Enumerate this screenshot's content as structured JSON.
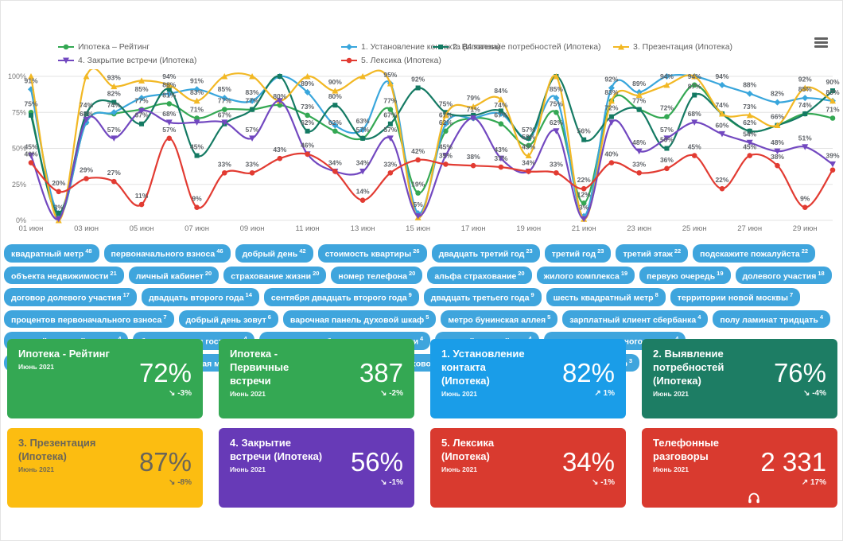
{
  "legend": {
    "items": [
      {
        "label": "Ипотека – Рейтинг",
        "color": "#34a853",
        "marker": "circle"
      },
      {
        "label": "1. Установление контакта (Ипотека)",
        "color": "#39a6dc",
        "marker": "diamond"
      },
      {
        "label": "2. Выявление потребностей (Ипотека)",
        "color": "#147a63",
        "marker": "square"
      },
      {
        "label": "3. Презентация (Ипотека)",
        "color": "#f2b824",
        "marker": "triangle"
      },
      {
        "label": "4. Закрытие встречи (Ипотека)",
        "color": "#7248c0",
        "marker": "triangle-down"
      },
      {
        "label": "5. Лексика (Ипотека)",
        "color": "#e23b32",
        "marker": "circle"
      }
    ]
  },
  "chart_data": {
    "type": "line",
    "x_labels": [
      "01 июн",
      "02 июн",
      "03 июн",
      "04 июн",
      "05 июн",
      "06 июн",
      "07 июн",
      "08 июн",
      "09 июн",
      "10 июн",
      "11 июн",
      "12 июн",
      "13 июн",
      "14 июн",
      "15 июн",
      "16 июн",
      "17 июн",
      "18 июн",
      "19 июн",
      "20 июн",
      "21 июн",
      "22 июн",
      "23 июн",
      "24 июн",
      "25 июн",
      "26 июн",
      "27 июн",
      "28 июн",
      "29 июн",
      "30 июн"
    ],
    "tick_every": 2,
    "ylim": [
      0,
      100
    ],
    "yticks": [
      "0%",
      "25%",
      "50%",
      "75%",
      "100%"
    ],
    "grid": true,
    "legend_position": "top",
    "series": [
      {
        "name": "Ипотека – Рейтинг",
        "color": "#34a853",
        "marker": "circle",
        "values": [
          75,
          3,
          68,
          74,
          77,
          81,
          71,
          77,
          77,
          80,
          73,
          62,
          57,
          77,
          19,
          62,
          71,
          67,
          52,
          75,
          12,
          83,
          77,
          72,
          94,
          74,
          62,
          66,
          74,
          71
        ]
      },
      {
        "name": "1. Установление контакта (Ипотека)",
        "color": "#39a6dc",
        "marker": "diamond",
        "values": [
          91,
          5,
          68,
          75,
          85,
          88,
          91,
          85,
          83,
          100,
          89,
          66,
          63,
          95,
          5,
          67,
          71,
          74,
          57,
          85,
          3,
          92,
          89,
          100,
          100,
          94,
          88,
          82,
          85,
          83
        ]
      },
      {
        "name": "2. Выявление потребностей (Ипотека)",
        "color": "#147a63",
        "marker": "square",
        "values": [
          73,
          5,
          74,
          82,
          67,
          91,
          45,
          67,
          77,
          100,
          62,
          80,
          57,
          67,
          92,
          75,
          73,
          76,
          57,
          100,
          56,
          72,
          77,
          50,
          87,
          74,
          62,
          66,
          74,
          90
        ]
      },
      {
        "name": "3. Презентация (Ипотека)",
        "color": "#f2b824",
        "marker": "triangle",
        "values": [
          100,
          0,
          100,
          93,
          97,
          94,
          83,
          100,
          100,
          83,
          100,
          90,
          100,
          95,
          2,
          73,
          79,
          84,
          45,
          100,
          1,
          83,
          87,
          94,
          100,
          74,
          73,
          66,
          92,
          83
        ]
      },
      {
        "name": "4. Закрытие встречи (Ипотека)",
        "color": "#7248c0",
        "marker": "triangle-down",
        "values": [
          45,
          1,
          70,
          57,
          76,
          68,
          68,
          68,
          57,
          83,
          46,
          34,
          34,
          57,
          3,
          45,
          71,
          43,
          34,
          62,
          1,
          68,
          48,
          57,
          68,
          60,
          54,
          48,
          51,
          39
        ]
      },
      {
        "name": "5. Лексика (Ипотека)",
        "color": "#e23b32",
        "marker": "circle",
        "values": [
          40,
          20,
          29,
          27,
          11,
          57,
          9,
          33,
          33,
          43,
          46,
          34,
          14,
          33,
          42,
          39,
          38,
          37,
          34,
          33,
          22,
          40,
          33,
          36,
          45,
          22,
          45,
          38,
          9,
          35
        ]
      }
    ]
  },
  "tags": [
    {
      "label": "квадратный метр",
      "count": 48
    },
    {
      "label": "первоначального взноса",
      "count": 46
    },
    {
      "label": "добрый день",
      "count": 42
    },
    {
      "label": "стоимость квартиры",
      "count": 26
    },
    {
      "label": "двадцать третий год",
      "count": 23
    },
    {
      "label": "третий год",
      "count": 23
    },
    {
      "label": "третий этаж",
      "count": 22
    },
    {
      "label": "подскажите пожалуйста",
      "count": 22
    },
    {
      "label": "объекта недвижимости",
      "count": 21
    },
    {
      "label": "личный кабинет",
      "count": 20
    },
    {
      "label": "страхование жизни",
      "count": 20
    },
    {
      "label": "номер телефона",
      "count": 20
    },
    {
      "label": "альфа страхование",
      "count": 20
    },
    {
      "label": "жилого комплекса",
      "count": 19
    },
    {
      "label": "первую очередь",
      "count": 19
    },
    {
      "label": "долевого участия",
      "count": 18
    },
    {
      "label": "договор долевого участия",
      "count": 17
    },
    {
      "label": "двадцать второго года",
      "count": 14
    },
    {
      "label": "сентября двадцать второго года",
      "count": 9
    },
    {
      "label": "двадцать третьего года",
      "count": 9
    },
    {
      "label": "шесть квадратный метр",
      "count": 8
    },
    {
      "label": "территории новой москвы",
      "count": 7
    },
    {
      "label": "процентов первоначального взноса",
      "count": 7
    },
    {
      "label": "добрый день зовут",
      "count": 6
    },
    {
      "label": "варочная панель духовой шкаф",
      "count": 5
    },
    {
      "label": "метро бунинская аллея",
      "count": 5
    },
    {
      "label": "зарплатный клиент сбербанка",
      "count": 4
    },
    {
      "label": "полу ламинат тридцать",
      "count": 4
    },
    {
      "label": "седьмой восьмой корпус",
      "count": 4
    },
    {
      "label": "большая кухня гостиная",
      "count": 4
    },
    {
      "label": "страхование объекта недвижимости",
      "count": 4
    },
    {
      "label": "первый детский сад",
      "count": 4
    },
    {
      "label": "ваш первоначального взноса",
      "count": 4
    },
    {
      "label": "варочная панель духовой шкаф посудомоечная машина",
      "count": 3
    },
    {
      "label": "холодильник варочная панель духовой шкаф",
      "count": 3
    },
    {
      "label": "двадцать шесть квадратный метр",
      "count": 3
    }
  ],
  "cards": [
    {
      "title": "Ипотека - Рейтинг",
      "period": "Июнь 2021",
      "value": "72%",
      "trend_arrow": "↘",
      "trend_label": "-3%",
      "color": "#34a853",
      "text_color": "#ffffff"
    },
    {
      "title": "Ипотека - Первичные встречи",
      "period": "Июнь 2021",
      "value": "387",
      "trend_arrow": "↘",
      "trend_label": "-2%",
      "color": "#34a853",
      "text_color": "#ffffff"
    },
    {
      "title": "1. Установление контакта (Ипотека)",
      "period": "Июнь 2021",
      "value": "82%",
      "trend_arrow": "↗",
      "trend_label": "1%",
      "color": "#1a9de8",
      "text_color": "#ffffff"
    },
    {
      "title": "2. Выявление потребностей (Ипотека)",
      "period": "Июнь 2021",
      "value": "76%",
      "trend_arrow": "↘",
      "trend_label": "-4%",
      "color": "#1d7d64",
      "text_color": "#ffffff"
    },
    {
      "title": "3. Презентация (Ипотека)",
      "period": "Июнь 2021",
      "value": "87%",
      "trend_arrow": "↘",
      "trend_label": "-8%",
      "color": "#fcbd11",
      "text_color": "#6a6558"
    },
    {
      "title": "4. Закрытие встречи (Ипотека)",
      "period": "Июнь 2021",
      "value": "56%",
      "trend_arrow": "↘",
      "trend_label": "-1%",
      "color": "#673ab7",
      "text_color": "#ffffff"
    },
    {
      "title": "5. Лексика (Ипотека)",
      "period": "Июнь 2021",
      "value": "34%",
      "trend_arrow": "↘",
      "trend_label": "-1%",
      "color": "#d93a2f",
      "text_color": "#ffffff"
    },
    {
      "title": "Телефонные разговоры",
      "period": "Июнь 2021",
      "value": "2 331",
      "trend_arrow": "↗",
      "trend_label": "17%",
      "color": "#d93a2f",
      "text_color": "#ffffff",
      "icon": "headphones"
    }
  ]
}
